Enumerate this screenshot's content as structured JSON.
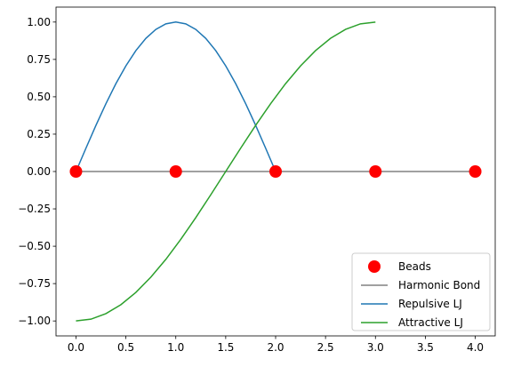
{
  "chart_data": {
    "type": "line",
    "title": "",
    "xlabel": "",
    "ylabel": "",
    "xlim": [
      -0.2,
      4.2
    ],
    "ylim": [
      -1.1,
      1.1
    ],
    "xticks": [
      0.0,
      0.5,
      1.0,
      1.5,
      2.0,
      2.5,
      3.0,
      3.5,
      4.0
    ],
    "xtick_labels": [
      "0.0",
      "0.5",
      "1.0",
      "1.5",
      "2.0",
      "2.5",
      "3.0",
      "3.5",
      "4.0"
    ],
    "yticks": [
      -1.0,
      -0.75,
      -0.5,
      -0.25,
      0.0,
      0.25,
      0.5,
      0.75,
      1.0
    ],
    "ytick_labels": [
      "−1.00",
      "−0.75",
      "−0.50",
      "−0.25",
      "0.00",
      "0.25",
      "0.50",
      "0.75",
      "1.00"
    ],
    "grid": false,
    "legend_position": "bottom-right",
    "series": [
      {
        "name": "Beads",
        "kind": "scatter",
        "color": "#ff0000",
        "marker": "circle",
        "x": [
          0,
          1,
          2,
          3,
          4
        ],
        "y": [
          0,
          0,
          0,
          0,
          0
        ]
      },
      {
        "name": "Harmonic Bond",
        "kind": "line",
        "color": "#808080",
        "x": [
          0,
          4
        ],
        "y": [
          0,
          0
        ]
      },
      {
        "name": "Repulsive LJ",
        "kind": "line",
        "color": "#1f77b4",
        "x": [
          0.0,
          0.1,
          0.2,
          0.3,
          0.4,
          0.5,
          0.6,
          0.7,
          0.8,
          0.9,
          1.0,
          1.1,
          1.2,
          1.3,
          1.4,
          1.5,
          1.6,
          1.7,
          1.8,
          1.9,
          2.0
        ],
        "y": [
          0.0,
          0.156,
          0.309,
          0.454,
          0.588,
          0.707,
          0.809,
          0.891,
          0.951,
          0.988,
          1.0,
          0.988,
          0.951,
          0.891,
          0.809,
          0.707,
          0.588,
          0.454,
          0.309,
          0.156,
          0.0
        ]
      },
      {
        "name": "Attractive LJ",
        "kind": "line",
        "color": "#2ca02c",
        "x": [
          0.0,
          0.15,
          0.3,
          0.45,
          0.6,
          0.75,
          0.9,
          1.05,
          1.2,
          1.35,
          1.5,
          1.65,
          1.8,
          1.95,
          2.1,
          2.25,
          2.4,
          2.55,
          2.7,
          2.85,
          3.0
        ],
        "y": [
          -1.0,
          -0.988,
          -0.951,
          -0.891,
          -0.809,
          -0.707,
          -0.588,
          -0.454,
          -0.309,
          -0.156,
          0.0,
          0.156,
          0.309,
          0.454,
          0.588,
          0.707,
          0.809,
          0.891,
          0.951,
          0.988,
          1.0
        ]
      }
    ]
  }
}
